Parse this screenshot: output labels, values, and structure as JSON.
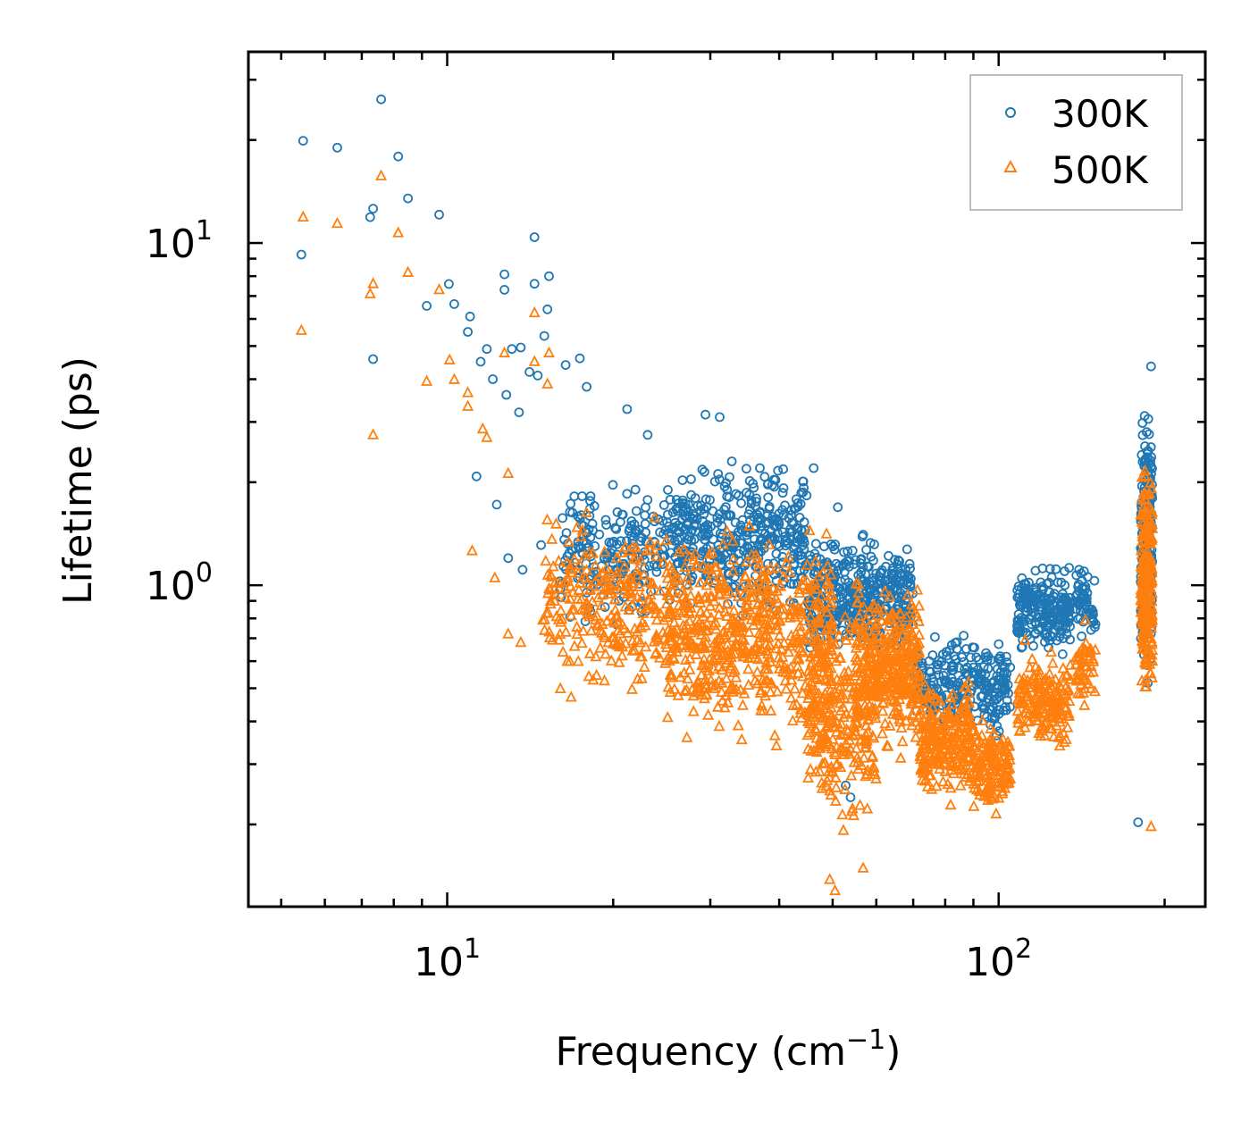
{
  "chart_data": {
    "type": "scatter",
    "title": "",
    "xlabel": "Frequency (cm",
    "xlabel_sup": "−1",
    "xlabel_suffix": ")",
    "ylabel": "Lifetime (ps)",
    "xscale": "log",
    "yscale": "log",
    "xlim": [
      4.36,
      237
    ],
    "ylim": [
      0.115,
      36.2
    ],
    "grid": false,
    "legend_position": "top-right",
    "x_ticks": [
      {
        "value": 10,
        "base": "10",
        "exp": "1"
      },
      {
        "value": 100,
        "base": "10",
        "exp": "2"
      }
    ],
    "y_ticks": [
      {
        "value": 1,
        "base": "10",
        "exp": "0"
      },
      {
        "value": 10,
        "base": "10",
        "exp": "1"
      }
    ],
    "series": [
      {
        "name": "300K",
        "marker": "circle",
        "color": "#1f77b4",
        "points": [
          [
            5.48,
            19.9
          ],
          [
            6.32,
            19.0
          ],
          [
            7.59,
            26.3
          ],
          [
            8.15,
            17.9
          ],
          [
            7.34,
            12.6
          ],
          [
            7.25,
            11.9
          ],
          [
            8.49,
            13.5
          ],
          [
            9.67,
            12.1
          ],
          [
            5.44,
            9.25
          ],
          [
            7.34,
            4.58
          ],
          [
            10.07,
            7.59
          ],
          [
            10.3,
            6.63
          ],
          [
            9.18,
            6.55
          ],
          [
            11.0,
            6.1
          ],
          [
            10.9,
            5.5
          ],
          [
            12.7,
            8.1
          ],
          [
            12.7,
            7.3
          ],
          [
            14.4,
            10.4
          ],
          [
            14.4,
            7.6
          ],
          [
            15.3,
            8.0
          ],
          [
            15.2,
            6.4
          ],
          [
            15.0,
            5.35
          ],
          [
            11.8,
            4.9
          ],
          [
            13.1,
            4.9
          ],
          [
            13.6,
            4.95
          ],
          [
            11.5,
            4.5
          ],
          [
            14.1,
            4.2
          ],
          [
            14.6,
            4.1
          ],
          [
            12.1,
            4.0
          ],
          [
            12.8,
            3.6
          ],
          [
            16.4,
            4.4
          ],
          [
            17.4,
            4.6
          ],
          [
            17.9,
            3.8
          ],
          [
            21.2,
            3.27
          ],
          [
            13.5,
            3.2
          ],
          [
            11.3,
            2.08
          ],
          [
            12.3,
            1.72
          ],
          [
            12.9,
            1.2
          ],
          [
            13.7,
            1.11
          ],
          [
            14.8,
            1.31
          ],
          [
            23.1,
            2.75
          ],
          [
            29.4,
            3.15
          ],
          [
            31.2,
            3.1
          ],
          [
            36.9,
            2.2
          ],
          [
            46.2,
            2.2
          ],
          [
            39.4,
            2.03
          ],
          [
            51.1,
            1.69
          ],
          [
            53.9,
            0.24
          ],
          [
            52.8,
            0.26
          ],
          [
            179,
            0.203
          ],
          [
            189,
            4.36
          ]
        ],
        "clusters": [
          {
            "f": [
              16,
              25
            ],
            "v": [
              0.7,
              2.2
            ],
            "n": 200
          },
          {
            "f": [
              25,
              45
            ],
            "v": [
              0.75,
              2.5
            ],
            "n": 420
          },
          {
            "f": [
              45,
              70
            ],
            "v": [
              0.55,
              1.5
            ],
            "n": 420
          },
          {
            "f": [
              70,
              105
            ],
            "v": [
              0.33,
              0.8
            ],
            "n": 260
          },
          {
            "f": [
              108,
              135
            ],
            "v": [
              0.6,
              1.2
            ],
            "n": 220
          },
          {
            "f": [
              138,
              150
            ],
            "v": [
              0.65,
              1.2
            ],
            "n": 60
          },
          {
            "f": [
              181,
              190
            ],
            "v": [
              0.45,
              4.2
            ],
            "n": 220
          }
        ]
      },
      {
        "name": "500K",
        "marker": "triangle",
        "color": "#ff7f0e",
        "points": [
          [
            5.48,
            11.9
          ],
          [
            6.32,
            11.4
          ],
          [
            7.59,
            15.7
          ],
          [
            8.15,
            10.7
          ],
          [
            7.34,
            7.6
          ],
          [
            7.25,
            7.1
          ],
          [
            8.49,
            8.2
          ],
          [
            9.67,
            7.3
          ],
          [
            5.44,
            5.55
          ],
          [
            7.34,
            2.75
          ],
          [
            9.18,
            3.94
          ],
          [
            10.1,
            4.55
          ],
          [
            10.3,
            3.99
          ],
          [
            10.9,
            3.65
          ],
          [
            10.9,
            3.33
          ],
          [
            14.4,
            6.25
          ],
          [
            15.3,
            4.77
          ],
          [
            12.7,
            4.77
          ],
          [
            14.4,
            4.5
          ],
          [
            15.2,
            3.87
          ],
          [
            11.6,
            2.86
          ],
          [
            11.8,
            2.7
          ],
          [
            12.9,
            2.12
          ],
          [
            11.1,
            1.26
          ],
          [
            12.2,
            1.05
          ],
          [
            12.9,
            0.72
          ],
          [
            13.6,
            0.68
          ],
          [
            14.9,
            0.79
          ],
          [
            189,
            0.197
          ],
          [
            50.5,
            0.128
          ],
          [
            56.8,
            0.149
          ],
          [
            49.4,
            0.138
          ]
        ],
        "clusters": [
          {
            "f": [
              15,
              25
            ],
            "v": [
              0.4,
              1.8
            ],
            "n": 250
          },
          {
            "f": [
              25,
              50
            ],
            "v": [
              0.3,
              1.7
            ],
            "n": 600
          },
          {
            "f": [
              45,
              60
            ],
            "v": [
              0.17,
              1.0
            ],
            "n": 250
          },
          {
            "f": [
              55,
              72
            ],
            "v": [
              0.3,
              1.1
            ],
            "n": 350
          },
          {
            "f": [
              72,
              90
            ],
            "v": [
              0.22,
              0.55
            ],
            "n": 250
          },
          {
            "f": [
              90,
              105
            ],
            "v": [
              0.2,
              0.45
            ],
            "n": 150
          },
          {
            "f": [
              108,
              135
            ],
            "v": [
              0.3,
              0.7
            ],
            "n": 180
          },
          {
            "f": [
              138,
              150
            ],
            "v": [
              0.4,
              0.8
            ],
            "n": 50
          },
          {
            "f": [
              181,
              190
            ],
            "v": [
              0.4,
              2.8
            ],
            "n": 220
          }
        ]
      }
    ]
  }
}
